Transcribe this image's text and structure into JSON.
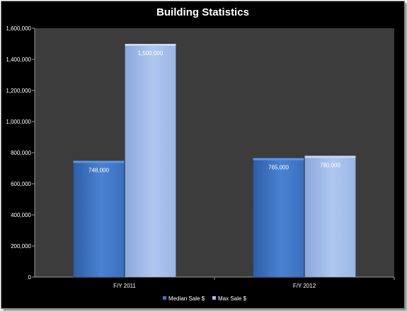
{
  "chart_data": {
    "type": "bar",
    "title": "Building Statistics",
    "categories": [
      "F/Y 2011",
      "F/Y 2012"
    ],
    "series": [
      {
        "name": "Median Sale $",
        "values": [
          748000,
          765000
        ],
        "labels": [
          "748,000",
          "765,000"
        ],
        "color": "#3f74c4"
      },
      {
        "name": "Max Sale $",
        "values": [
          1500000,
          780000
        ],
        "labels": [
          "1,500,000",
          "780,000"
        ],
        "color": "#a4bde8"
      }
    ],
    "ylim": [
      0,
      1600000
    ],
    "yticks": [
      0,
      200000,
      400000,
      600000,
      800000,
      1000000,
      1200000,
      1400000,
      1600000
    ],
    "ytick_labels": [
      "0",
      "200,000",
      "400,000",
      "600,000",
      "800,000",
      "1,000,000",
      "1,200,000",
      "1,400,000",
      "1,600,000"
    ],
    "xlabel": "",
    "ylabel": "",
    "grid": false,
    "legend": "bottom",
    "background": "#000000",
    "plot_background": "#3c3c3c"
  }
}
